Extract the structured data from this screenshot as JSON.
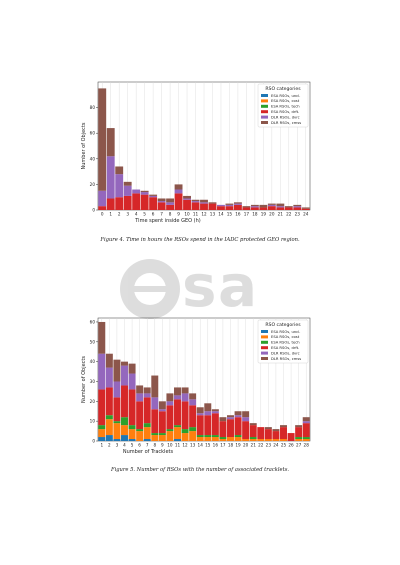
{
  "watermark": {
    "text": "esa"
  },
  "figures": [
    {
      "caption": "Figure 4. Time in hours the RSOs spend in the IADC protected GEO region."
    },
    {
      "caption": "Figure 5. Number of RSOs with the number of associated tracklets."
    }
  ],
  "chart_data": [
    {
      "type": "bar",
      "stacked": true,
      "xlabel": "Time spent inside GEO (h)",
      "ylabel": "Number of Objects",
      "categories": [
        "0",
        "1",
        "2",
        "3",
        "4",
        "5",
        "6",
        "7",
        "8",
        "9",
        "10",
        "11",
        "12",
        "13",
        "14",
        "15",
        "16",
        "17",
        "18",
        "19",
        "20",
        "21",
        "22",
        "23",
        "24"
      ],
      "ylim": [
        0,
        100
      ],
      "yticks": [
        0,
        20,
        40,
        60,
        80
      ],
      "grid": true,
      "legend": {
        "title": "RSO categories",
        "placement": "top-right"
      },
      "series": [
        {
          "name": "ESA RSOs, uncl.",
          "color": "#1f77b4",
          "values": [
            0,
            0,
            0,
            0,
            0,
            0,
            0,
            0,
            0,
            0,
            0,
            0,
            0,
            0,
            0,
            0,
            0,
            0,
            0,
            0,
            0,
            0,
            0,
            0,
            0
          ]
        },
        {
          "name": "ESA RSOs, cost",
          "color": "#ff7f0e",
          "values": [
            0,
            0,
            0,
            0,
            0,
            0,
            0,
            0,
            0,
            0,
            0,
            0,
            0,
            0,
            0,
            0,
            0,
            0,
            0,
            0,
            0,
            0,
            0,
            0,
            0
          ]
        },
        {
          "name": "ESA RSOs, tech",
          "color": "#2ca02c",
          "values": [
            0,
            0,
            0,
            0,
            0,
            0,
            0,
            0,
            0,
            0,
            0,
            0,
            0,
            0,
            0,
            0,
            0,
            0,
            0,
            0,
            0,
            0,
            0,
            0,
            0
          ]
        },
        {
          "name": "ESA RSOs, drft.",
          "color": "#d62728",
          "values": [
            3,
            9,
            10,
            11,
            13,
            12,
            10,
            6,
            4,
            13,
            8,
            6,
            5,
            5,
            3,
            3,
            4,
            2,
            2,
            2,
            3,
            2,
            2,
            2,
            1
          ]
        },
        {
          "name": "DLR RSOs, dvrc",
          "color": "#9467bd",
          "values": [
            12,
            33,
            18,
            8,
            3,
            2,
            1,
            1,
            2,
            3,
            1,
            1,
            1,
            0,
            1,
            1,
            1,
            0,
            1,
            0,
            1,
            1,
            0,
            1,
            0
          ]
        },
        {
          "name": "DLR RSOs, cmss",
          "color": "#8c564b",
          "values": [
            80,
            22,
            6,
            3,
            0,
            1,
            1,
            2,
            3,
            4,
            2,
            1,
            2,
            1,
            0,
            1,
            1,
            1,
            1,
            2,
            1,
            2,
            1,
            1,
            1
          ]
        }
      ]
    },
    {
      "type": "bar",
      "stacked": true,
      "xlabel": "Number of Tracklets",
      "ylabel": "Number of Objects",
      "categories": [
        "1",
        "2",
        "3",
        "4",
        "5",
        "6",
        "7",
        "8",
        "9",
        "10",
        "11",
        "12",
        "13",
        "14",
        "15",
        "16",
        "17",
        "18",
        "19",
        "20",
        "21",
        "22",
        "23",
        "24",
        "25",
        "26",
        "27",
        "28"
      ],
      "ylim": [
        0,
        62
      ],
      "yticks": [
        0,
        10,
        20,
        30,
        40,
        50,
        60
      ],
      "grid": true,
      "legend": {
        "title": "RSO categories",
        "placement": "top-right"
      },
      "series": [
        {
          "name": "ESA RSOs, uncl.",
          "color": "#1f77b4",
          "values": [
            2,
            3,
            1,
            3,
            1,
            0,
            1,
            0,
            0,
            0,
            1,
            0,
            0,
            0,
            0,
            0,
            0,
            0,
            0,
            0,
            0,
            0,
            0,
            0,
            0,
            0,
            0,
            0
          ]
        },
        {
          "name": "ESA RSOs, cost",
          "color": "#ff7f0e",
          "values": [
            4,
            8,
            8,
            5,
            5,
            5,
            6,
            3,
            3,
            5,
            6,
            4,
            5,
            2,
            2,
            2,
            1,
            2,
            2,
            1,
            1,
            1,
            1,
            1,
            1,
            0,
            1,
            1
          ]
        },
        {
          "name": "ESA RSOs, tech",
          "color": "#2ca02c",
          "values": [
            2,
            2,
            1,
            4,
            2,
            1,
            2,
            1,
            1,
            1,
            1,
            2,
            2,
            1,
            1,
            1,
            1,
            0,
            1,
            0,
            1,
            0,
            0,
            0,
            0,
            0,
            1,
            1
          ]
        },
        {
          "name": "ESA RSOs, drft.",
          "color": "#d62728",
          "values": [
            18,
            14,
            12,
            16,
            18,
            14,
            13,
            12,
            11,
            12,
            13,
            14,
            11,
            10,
            10,
            11,
            8,
            9,
            9,
            9,
            6,
            6,
            5,
            4,
            6,
            4,
            5,
            7
          ]
        },
        {
          "name": "DLR RSOs, dvrc",
          "color": "#9467bd",
          "values": [
            18,
            10,
            8,
            10,
            8,
            4,
            2,
            6,
            1,
            2,
            2,
            4,
            3,
            1,
            2,
            1,
            0,
            1,
            1,
            2,
            0,
            0,
            0,
            0,
            0,
            0,
            0,
            1
          ]
        },
        {
          "name": "DLR RSOs, cmss",
          "color": "#8c564b",
          "values": [
            16,
            7,
            11,
            2,
            5,
            4,
            3,
            11,
            4,
            4,
            4,
            3,
            3,
            3,
            4,
            1,
            2,
            1,
            2,
            3,
            1,
            0,
            1,
            1,
            1,
            0,
            1,
            2
          ]
        }
      ]
    }
  ]
}
